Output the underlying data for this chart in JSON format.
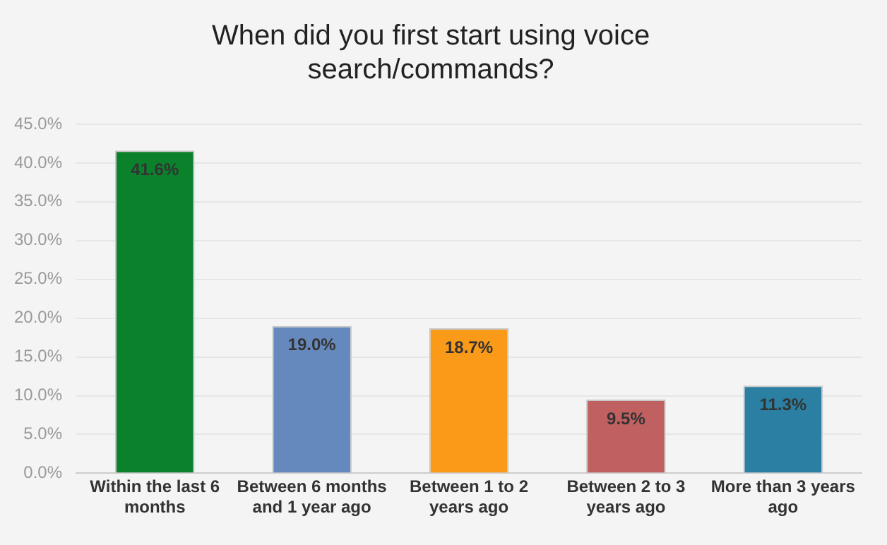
{
  "chart_data": {
    "type": "bar",
    "title": "When did you first start using voice search/commands?",
    "categories": [
      "Within the last 6 months",
      "Between 6 months and 1 year ago",
      "Between 1 to 2 years ago",
      "Between 2 to 3 years ago",
      "More than 3 years ago"
    ],
    "values": [
      41.6,
      19.0,
      18.7,
      9.5,
      11.3
    ],
    "colors": [
      "#0c812c",
      "#6589bd",
      "#f99a19",
      "#c06060",
      "#2a7fa3"
    ],
    "value_labels": [
      "41.6%",
      "19.0%",
      "18.7%",
      "9.5%",
      "11.3%"
    ],
    "ylim": [
      0,
      45
    ],
    "yticks": [
      {
        "value": 0,
        "label": "0.0%"
      },
      {
        "value": 5,
        "label": "5.0%"
      },
      {
        "value": 10,
        "label": "10.0%"
      },
      {
        "value": 15,
        "label": "15.0%"
      },
      {
        "value": 20,
        "label": "20.0%"
      },
      {
        "value": 25,
        "label": "25.0%"
      },
      {
        "value": 30,
        "label": "30.0%"
      },
      {
        "value": 35,
        "label": "35.0%"
      },
      {
        "value": 40,
        "label": "40.0%"
      },
      {
        "value": 45,
        "label": "45.0%"
      }
    ],
    "grid": "y",
    "legend": false
  }
}
